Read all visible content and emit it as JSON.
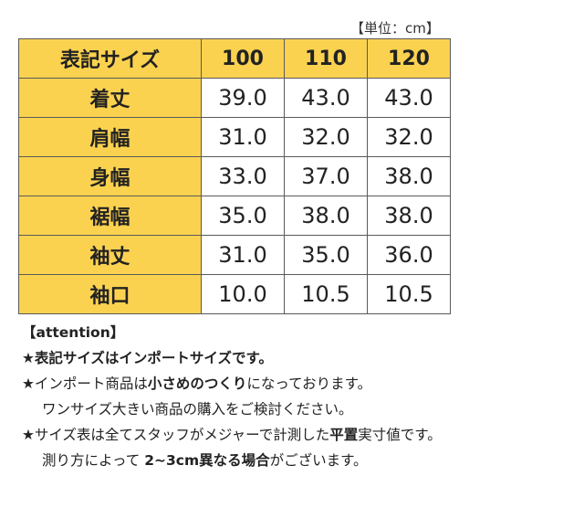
{
  "unit_label": "【単位：cm】",
  "table": {
    "header": [
      "表記サイズ",
      "100",
      "110",
      "120"
    ],
    "rows": [
      {
        "label": "着丈",
        "values": [
          "39.0",
          "43.0",
          "43.0"
        ]
      },
      {
        "label": "肩幅",
        "values": [
          "31.0",
          "32.0",
          "32.0"
        ]
      },
      {
        "label": "身幅",
        "values": [
          "33.0",
          "37.0",
          "38.0"
        ]
      },
      {
        "label": "裾幅",
        "values": [
          "35.0",
          "38.0",
          "38.0"
        ]
      },
      {
        "label": "袖丈",
        "values": [
          "31.0",
          "35.0",
          "36.0"
        ]
      },
      {
        "label": "袖口",
        "values": [
          "10.0",
          "10.5",
          "10.5"
        ]
      }
    ],
    "header_color": "#fbd250"
  },
  "notes": {
    "heading": "【attention】",
    "line1": "★表記サイズはインポートサイズです。",
    "line2_pre": "★インポート商品は",
    "line2_bold": "小さめのつくり",
    "line2_post": "になっております。",
    "line3": "ワンサイズ大きい商品の購入をご検討ください。",
    "line4_pre": "★サイズ表は全てスタッフがメジャーで計測した",
    "line4_bold": "平置",
    "line4_post": "実寸値です。",
    "line5_pre": "測り方によって ",
    "line5_bold": "2~3cm異なる場合",
    "line5_post": "がございます。"
  }
}
